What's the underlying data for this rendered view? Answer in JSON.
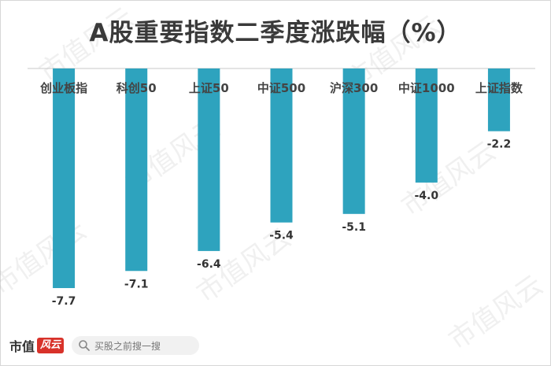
{
  "chart_data": {
    "type": "bar",
    "title": "A股重要指数二季度涨跌幅（%）",
    "categories": [
      "创业板指",
      "科创50",
      "上证50",
      "中证500",
      "沪深300",
      "中证1000",
      "上证指数"
    ],
    "series": [
      {
        "values": [
          -7.7,
          -7.1,
          -6.4,
          -5.4,
          -5.1,
          -4.0,
          -2.2
        ]
      }
    ],
    "ylim": [
      -8.5,
      0
    ],
    "xlabel": "",
    "ylabel": "",
    "grid": false,
    "bar_color": "#2ea3be",
    "axis_color": "#c8c8c8"
  },
  "watermark": {
    "text": "市值风云"
  },
  "footer": {
    "brand": "市值",
    "brand_logo": "风云",
    "search_placeholder": "买股之前搜一搜"
  },
  "icons": {
    "search": "search-icon"
  }
}
